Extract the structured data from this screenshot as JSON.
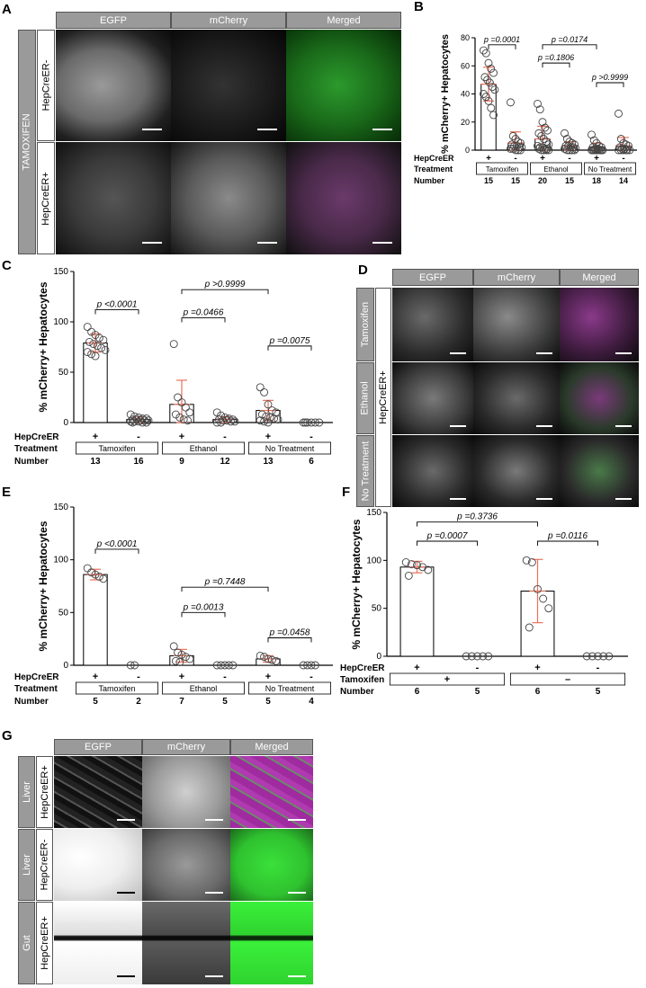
{
  "letters": {
    "A": "A",
    "B": "B",
    "C": "C",
    "D": "D",
    "E": "E",
    "F": "F",
    "G": "G"
  },
  "panelA": {
    "columns": [
      "EGFP",
      "mCherry",
      "Merged"
    ],
    "group_label": "TAMOXIFEN",
    "rows": [
      "HepCreER-",
      "HepCreER+"
    ]
  },
  "panelD": {
    "columns": [
      "EGFP",
      "mCherry",
      "Merged"
    ],
    "group_label": "HepCreER+",
    "rows": [
      "Tamoxifen",
      "Ethanol",
      "No Treatment"
    ]
  },
  "panelG": {
    "columns": [
      "EGFP",
      "mCherry",
      "Merged"
    ],
    "rows": [
      {
        "tissue": "Liver",
        "genotype": "HepCreER+"
      },
      {
        "tissue": "Liver",
        "genotype": "HepCreER-"
      },
      {
        "tissue": "Gut",
        "genotype": "HepCreER+"
      }
    ]
  },
  "colors": {
    "header_gray": "#9a9a9a",
    "error_bar": "#e8725c",
    "green": "#2fd32f",
    "magenta": "#b03aa8"
  },
  "chart_data": [
    {
      "panel": "B",
      "type": "scatter",
      "ylabel": "% mCherry+ Hepatocytes",
      "ylim": [
        0,
        80
      ],
      "yticks": [
        0,
        20,
        40,
        60,
        80
      ],
      "row_labels": [
        "HepCreER",
        "Treatment",
        "Number"
      ],
      "genotype": [
        "+",
        "-",
        "+",
        "-",
        "+",
        "-"
      ],
      "treatments": [
        "Tamoxifen",
        "Ethanol",
        "No Treatment"
      ],
      "numbers": [
        "15",
        "15",
        "20",
        "15",
        "18",
        "14"
      ],
      "means": [
        47,
        5,
        8,
        3,
        2,
        3
      ],
      "sd": [
        12,
        8,
        9,
        3,
        3,
        6
      ],
      "points": [
        [
          71,
          69,
          62,
          58,
          55,
          52,
          50,
          48,
          45,
          43,
          40,
          38,
          35,
          30,
          25
        ],
        [
          34,
          10,
          8,
          6,
          5,
          4,
          3,
          3,
          2,
          2,
          1,
          1,
          0,
          0,
          0
        ],
        [
          33,
          29,
          20,
          16,
          14,
          12,
          10,
          8,
          6,
          4,
          3,
          2,
          2,
          1,
          1,
          1,
          0,
          0,
          0,
          0
        ],
        [
          12,
          8,
          6,
          5,
          4,
          3,
          3,
          2,
          2,
          1,
          1,
          0,
          0,
          0,
          0
        ],
        [
          11,
          7,
          5,
          3,
          2,
          2,
          1,
          1,
          0,
          0,
          0,
          0,
          0,
          0,
          0,
          0,
          0,
          0
        ],
        [
          26,
          8,
          5,
          4,
          3,
          2,
          1,
          1,
          0,
          0,
          0,
          0,
          0,
          0
        ]
      ],
      "comparisons": [
        {
          "label": "p =0.0001",
          "from": 0,
          "to": 1,
          "y": 75
        },
        {
          "label": "p =0.0174",
          "from": 2,
          "to": 4,
          "y": 75
        },
        {
          "label": "p =0.1806",
          "from": 2,
          "to": 3,
          "y": 62
        },
        {
          "label": "p >0.9999",
          "from": 4,
          "to": 5,
          "y": 48
        }
      ]
    },
    {
      "panel": "C",
      "type": "scatter",
      "ylabel": "% mCherry+ Hepatocytes",
      "ylim": [
        0,
        150
      ],
      "yticks": [
        0,
        50,
        100,
        150
      ],
      "row_labels": [
        "HepCreER",
        "Treatment",
        "Number"
      ],
      "genotype": [
        "+",
        "-",
        "+",
        "-",
        "+",
        "-"
      ],
      "treatments": [
        "Tamoxifen",
        "Ethanol",
        "No Treatment"
      ],
      "numbers": [
        "13",
        "16",
        "9",
        "12",
        "13",
        "6"
      ],
      "means": [
        79,
        3,
        18,
        3,
        12,
        0
      ],
      "sd": [
        9,
        3,
        24,
        3,
        10,
        0
      ],
      "points": [
        [
          95,
          90,
          87,
          84,
          82,
          80,
          78,
          76,
          74,
          72,
          70,
          68,
          66
        ],
        [
          8,
          6,
          5,
          4,
          4,
          3,
          3,
          2,
          2,
          2,
          1,
          1,
          1,
          0,
          0,
          0
        ],
        [
          78,
          25,
          20,
          15,
          10,
          8,
          5,
          3,
          2
        ],
        [
          10,
          7,
          5,
          4,
          3,
          3,
          2,
          2,
          1,
          1,
          0,
          0
        ],
        [
          35,
          30,
          18,
          12,
          10,
          8,
          6,
          5,
          4,
          3,
          2,
          1,
          0
        ],
        [
          0,
          0,
          0,
          0,
          0,
          0
        ]
      ],
      "comparisons": [
        {
          "label": "p <0.0001",
          "from": 0,
          "to": 1,
          "y": 112
        },
        {
          "label": "p >0.9999",
          "from": 2,
          "to": 4,
          "y": 132
        },
        {
          "label": "p =0.0466",
          "from": 2,
          "to": 3,
          "y": 104
        },
        {
          "label": "p =0.0075",
          "from": 4,
          "to": 5,
          "y": 76
        }
      ]
    },
    {
      "panel": "E",
      "type": "scatter",
      "ylabel": "% mCherry+ Hepatocytes",
      "ylim": [
        0,
        150
      ],
      "yticks": [
        0,
        50,
        100,
        150
      ],
      "row_labels": [
        "HepCreER",
        "Treatment",
        "Number"
      ],
      "genotype": [
        "+",
        "-",
        "+",
        "-",
        "+",
        "-"
      ],
      "treatments": [
        "Tamoxifen",
        "Ethanol",
        "No Treatment"
      ],
      "numbers": [
        "5",
        "2",
        "7",
        "5",
        "5",
        "4"
      ],
      "means": [
        86,
        0,
        9,
        0,
        6,
        0
      ],
      "sd": [
        5,
        0,
        6,
        0,
        3,
        0
      ],
      "points": [
        [
          92,
          88,
          86,
          84,
          82
        ],
        [
          0,
          0
        ],
        [
          18,
          12,
          10,
          8,
          6,
          4,
          3
        ],
        [
          0,
          0,
          0,
          0,
          0
        ],
        [
          9,
          8,
          6,
          5,
          4
        ],
        [
          0,
          0,
          0,
          0
        ]
      ],
      "comparisons": [
        {
          "label": "p <0.0001",
          "from": 0,
          "to": 1,
          "y": 110
        },
        {
          "label": "p =0.7448",
          "from": 2,
          "to": 4,
          "y": 74
        },
        {
          "label": "p =0.0013",
          "from": 2,
          "to": 3,
          "y": 50
        },
        {
          "label": "p =0.0458",
          "from": 4,
          "to": 5,
          "y": 26
        }
      ]
    },
    {
      "panel": "F",
      "type": "scatter",
      "ylabel": "% mCherry+ Hepatocytes",
      "ylim": [
        0,
        150
      ],
      "yticks": [
        0,
        50,
        100,
        150
      ],
      "row_labels": [
        "HepCreER",
        "Tamoxifen",
        "Number"
      ],
      "genotype": [
        "+",
        "-",
        "+",
        "-"
      ],
      "treatment_marks": [
        "+",
        "–"
      ],
      "numbers": [
        "6",
        "5",
        "6",
        "5"
      ],
      "means": [
        93,
        0,
        68,
        0
      ],
      "sd": [
        6,
        0,
        33,
        0
      ],
      "points": [
        [
          98,
          96,
          95,
          93,
          90,
          84
        ],
        [
          0,
          0,
          0,
          0,
          0
        ],
        [
          100,
          98,
          70,
          60,
          50,
          30
        ],
        [
          0,
          0,
          0,
          0,
          0
        ]
      ],
      "comparisons": [
        {
          "label": "p =0.3736",
          "from": 0,
          "to": 2,
          "y": 140
        },
        {
          "label": "p =0.0007",
          "from": 0,
          "to": 1,
          "y": 120
        },
        {
          "label": "p =0.0116",
          "from": 2,
          "to": 3,
          "y": 120
        }
      ]
    }
  ]
}
